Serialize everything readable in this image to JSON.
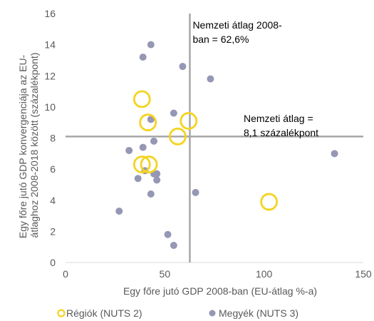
{
  "chart_data": {
    "type": "scatter",
    "xlabel": "Egy főre jutó GDP 2008-ban (EU-átlag %-a)",
    "ylabel_lines": [
      "Egy főre jutó GDP konvergenciája az EU-",
      "átlaghoz 2008-2018 között (százalékpont)"
    ],
    "xlim": [
      0,
      150
    ],
    "ylim": [
      0,
      16
    ],
    "x_ticks": [
      0,
      50,
      100,
      150
    ],
    "y_ticks": [
      0,
      2,
      4,
      6,
      8,
      10,
      12,
      14,
      16
    ],
    "grid": false,
    "legend_position": "bottom",
    "colors": {
      "regions": "#F5D320",
      "counties": "#9597B4",
      "reference_lines": "#A6A6A6"
    },
    "reference_lines": {
      "vertical": {
        "x": 62.6,
        "label_lines": [
          "Nemzeti átlag 2008-",
          "ban = 62,6%"
        ]
      },
      "horizontal": {
        "y": 8.1,
        "label_lines": [
          "Nemzeti átlag =",
          "8,1 százalékpont"
        ]
      }
    },
    "series": [
      {
        "name": "Régiók (NUTS 2)",
        "marker": "ring",
        "points": [
          {
            "x": 38.5,
            "y": 10.5
          },
          {
            "x": 41.5,
            "y": 9.0
          },
          {
            "x": 62.0,
            "y": 9.1
          },
          {
            "x": 56.5,
            "y": 8.1
          },
          {
            "x": 38.5,
            "y": 6.3
          },
          {
            "x": 42.0,
            "y": 6.3
          },
          {
            "x": 102.5,
            "y": 3.9
          }
        ]
      },
      {
        "name": "Megyék (NUTS 3)",
        "marker": "dot",
        "points": [
          {
            "x": 43.0,
            "y": 14.0
          },
          {
            "x": 39.0,
            "y": 13.2
          },
          {
            "x": 59.0,
            "y": 12.6
          },
          {
            "x": 73.0,
            "y": 11.8
          },
          {
            "x": 54.5,
            "y": 9.6
          },
          {
            "x": 43.0,
            "y": 9.2
          },
          {
            "x": 44.5,
            "y": 7.8
          },
          {
            "x": 32.0,
            "y": 7.2
          },
          {
            "x": 39.0,
            "y": 7.4
          },
          {
            "x": 40.0,
            "y": 5.9
          },
          {
            "x": 44.5,
            "y": 5.7
          },
          {
            "x": 46.0,
            "y": 5.7
          },
          {
            "x": 36.5,
            "y": 5.4
          },
          {
            "x": 46.0,
            "y": 5.3
          },
          {
            "x": 65.5,
            "y": 4.5
          },
          {
            "x": 43.0,
            "y": 4.4
          },
          {
            "x": 27.0,
            "y": 3.3
          },
          {
            "x": 51.5,
            "y": 1.8
          },
          {
            "x": 54.5,
            "y": 1.1
          },
          {
            "x": 135.5,
            "y": 7.0
          }
        ]
      }
    ]
  }
}
